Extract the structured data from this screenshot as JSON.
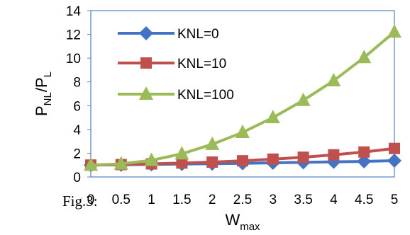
{
  "caption": "Fig.3:",
  "chart_data": {
    "type": "line",
    "x": [
      0,
      0.5,
      1,
      1.5,
      2,
      2.5,
      3,
      3.5,
      4,
      4.5,
      5
    ],
    "xticklabels": [
      "0",
      "0.5",
      "1",
      "1.5",
      "2",
      "2.5",
      "3",
      "3.5",
      "4",
      "4.5",
      "5"
    ],
    "ylim": [
      0,
      14
    ],
    "yticks": [
      0,
      2,
      4,
      6,
      8,
      10,
      12,
      14
    ],
    "xlabel": {
      "main": "W",
      "sub": "max"
    },
    "ylabel": {
      "p1": "P",
      "sub1": "NL",
      "sep": "/P",
      "sub2": "L"
    },
    "legend_position": "top-left",
    "grid": false,
    "series": [
      {
        "name": "KNL=0",
        "marker": "diamond",
        "color": "#4472C4",
        "values": [
          1.0,
          1.03,
          1.06,
          1.09,
          1.12,
          1.15,
          1.19,
          1.23,
          1.27,
          1.31,
          1.37
        ]
      },
      {
        "name": "KNL=10",
        "marker": "square",
        "color": "#C0504D",
        "values": [
          1.0,
          1.04,
          1.1,
          1.17,
          1.25,
          1.36,
          1.5,
          1.66,
          1.86,
          2.1,
          2.4
        ]
      },
      {
        "name": "KNL=100",
        "marker": "triangle",
        "color": "#9BBB59",
        "values": [
          1.0,
          1.1,
          1.4,
          1.95,
          2.75,
          3.75,
          5.0,
          6.45,
          8.1,
          10.05,
          12.2
        ]
      }
    ]
  }
}
